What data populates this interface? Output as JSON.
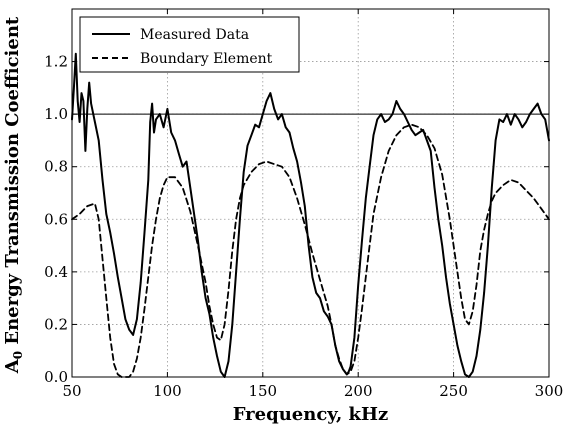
{
  "chart_data": {
    "type": "line",
    "xlabel": "Frequency, kHz",
    "ylabel_main": "A",
    "ylabel_sub": "0",
    "ylabel_rest": " Energy Transmission Coefficient",
    "xlim": [
      50,
      300
    ],
    "ylim": [
      0.0,
      1.4
    ],
    "xticks": [
      50,
      100,
      150,
      200,
      250,
      300
    ],
    "yticks": [
      "0.0",
      "0.2",
      "0.4",
      "0.6",
      "0.8",
      "1.0",
      "1.2"
    ],
    "ytick_values": [
      0.0,
      0.2,
      0.4,
      0.6,
      0.8,
      1.0,
      1.2
    ],
    "grid": true,
    "reference_line_y": 1.0,
    "legend_position": "top-left",
    "series": [
      {
        "name": "Measured Data",
        "style": "solid",
        "x": [
          50,
          51,
          52,
          53,
          54,
          55,
          56,
          57,
          58,
          59,
          60,
          62,
          64,
          66,
          68,
          70,
          72,
          74,
          76,
          78,
          80,
          82,
          84,
          86,
          88,
          90,
          91,
          92,
          93,
          94,
          96,
          98,
          100,
          102,
          104,
          106,
          108,
          110,
          112,
          114,
          116,
          118,
          120,
          122,
          124,
          126,
          128,
          130,
          132,
          134,
          136,
          138,
          140,
          142,
          144,
          146,
          148,
          150,
          152,
          154,
          156,
          158,
          160,
          162,
          164,
          166,
          168,
          170,
          172,
          174,
          176,
          178,
          180,
          182,
          184,
          186,
          188,
          190,
          192,
          194,
          195,
          196,
          198,
          200,
          202,
          204,
          206,
          208,
          210,
          212,
          214,
          216,
          218,
          220,
          222,
          224,
          226,
          228,
          230,
          232,
          234,
          236,
          238,
          240,
          242,
          244,
          246,
          248,
          250,
          252,
          254,
          256,
          258,
          260,
          262,
          264,
          266,
          268,
          270,
          272,
          274,
          276,
          278,
          280,
          282,
          284,
          286,
          288,
          290,
          292,
          294,
          296,
          298,
          300
        ],
        "values": [
          0.98,
          1.1,
          1.23,
          1.05,
          0.97,
          1.08,
          1.05,
          0.86,
          1.02,
          1.12,
          1.04,
          0.97,
          0.9,
          0.75,
          0.62,
          0.55,
          0.47,
          0.38,
          0.3,
          0.22,
          0.18,
          0.16,
          0.22,
          0.36,
          0.55,
          0.75,
          0.97,
          1.04,
          0.93,
          0.98,
          1.0,
          0.95,
          1.02,
          0.93,
          0.9,
          0.85,
          0.8,
          0.82,
          0.72,
          0.62,
          0.52,
          0.4,
          0.3,
          0.24,
          0.15,
          0.08,
          0.02,
          0.0,
          0.06,
          0.2,
          0.4,
          0.6,
          0.78,
          0.88,
          0.92,
          0.96,
          0.95,
          1.0,
          1.05,
          1.08,
          1.02,
          0.98,
          1.0,
          0.95,
          0.93,
          0.87,
          0.82,
          0.74,
          0.65,
          0.5,
          0.38,
          0.32,
          0.3,
          0.25,
          0.23,
          0.2,
          0.12,
          0.06,
          0.03,
          0.01,
          0.02,
          0.04,
          0.15,
          0.35,
          0.52,
          0.68,
          0.8,
          0.92,
          0.98,
          1.0,
          0.97,
          0.98,
          1.0,
          1.05,
          1.02,
          1.0,
          0.97,
          0.94,
          0.92,
          0.93,
          0.94,
          0.9,
          0.86,
          0.72,
          0.6,
          0.5,
          0.38,
          0.28,
          0.2,
          0.12,
          0.06,
          0.01,
          0.0,
          0.02,
          0.08,
          0.18,
          0.32,
          0.5,
          0.72,
          0.9,
          0.98,
          0.97,
          1.0,
          0.96,
          1.0,
          0.98,
          0.95,
          0.97,
          1.0,
          1.02,
          1.04,
          1.0,
          0.98,
          0.9
        ]
      },
      {
        "name": "Boundary Element",
        "style": "dashed",
        "x": [
          50,
          54,
          58,
          62,
          64,
          66,
          68,
          70,
          72,
          74,
          76,
          78,
          80,
          82,
          84,
          86,
          88,
          90,
          92,
          94,
          96,
          98,
          100,
          104,
          108,
          112,
          116,
          120,
          122,
          124,
          126,
          128,
          130,
          132,
          134,
          136,
          138,
          140,
          144,
          148,
          152,
          156,
          160,
          164,
          168,
          172,
          176,
          180,
          184,
          186,
          188,
          190,
          192,
          194,
          196,
          198,
          200,
          202,
          204,
          206,
          208,
          212,
          216,
          220,
          224,
          228,
          232,
          236,
          240,
          244,
          248,
          250,
          252,
          254,
          256,
          258,
          260,
          262,
          264,
          266,
          268,
          270,
          272,
          276,
          280,
          284,
          288,
          292,
          296,
          300
        ],
        "values": [
          0.6,
          0.62,
          0.65,
          0.66,
          0.6,
          0.45,
          0.3,
          0.15,
          0.05,
          0.01,
          0.0,
          0.0,
          0.0,
          0.02,
          0.07,
          0.15,
          0.26,
          0.38,
          0.5,
          0.6,
          0.68,
          0.73,
          0.76,
          0.76,
          0.72,
          0.63,
          0.5,
          0.36,
          0.27,
          0.2,
          0.15,
          0.14,
          0.2,
          0.33,
          0.48,
          0.6,
          0.68,
          0.73,
          0.78,
          0.81,
          0.82,
          0.81,
          0.8,
          0.76,
          0.68,
          0.58,
          0.47,
          0.37,
          0.27,
          0.2,
          0.12,
          0.07,
          0.03,
          0.01,
          0.02,
          0.06,
          0.15,
          0.26,
          0.38,
          0.5,
          0.62,
          0.76,
          0.86,
          0.92,
          0.95,
          0.96,
          0.95,
          0.92,
          0.87,
          0.77,
          0.6,
          0.5,
          0.4,
          0.3,
          0.22,
          0.2,
          0.25,
          0.35,
          0.48,
          0.56,
          0.62,
          0.67,
          0.7,
          0.73,
          0.75,
          0.74,
          0.71,
          0.68,
          0.64,
          0.6
        ]
      }
    ]
  }
}
